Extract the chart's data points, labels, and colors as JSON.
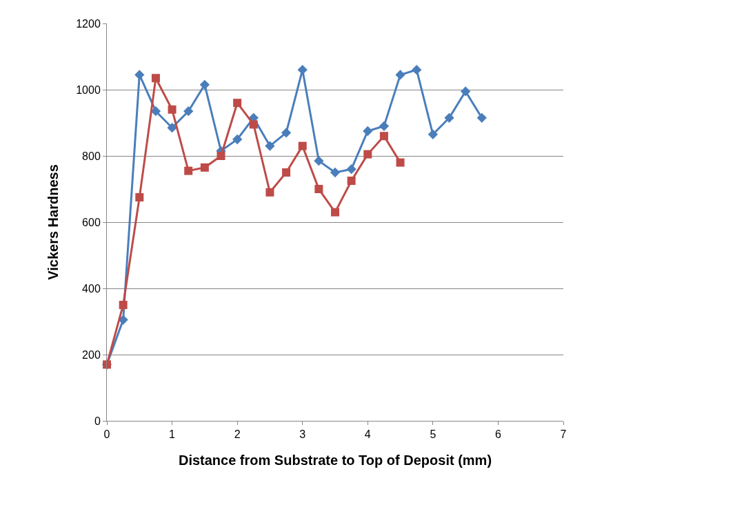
{
  "chart_data": {
    "type": "line",
    "xlabel": "Distance from Substrate to Top of Deposit (mm)",
    "ylabel": "Vickers Hardness",
    "xlim": [
      0,
      7
    ],
    "xticks": [
      0,
      1,
      2,
      3,
      4,
      5,
      6,
      7
    ],
    "ylim": [
      0,
      1200
    ],
    "yticks": [
      0,
      200,
      400,
      600,
      800,
      1000,
      1200
    ],
    "grid": "y",
    "series": [
      {
        "color": "#4a7ebb",
        "marker": "diamond",
        "x": [
          0,
          0.25,
          0.5,
          0.75,
          1,
          1.25,
          1.5,
          1.75,
          2,
          2.25,
          2.5,
          2.75,
          3,
          3.25,
          3.5,
          3.75,
          4,
          4.25,
          4.5,
          4.75,
          5,
          5.25,
          5.5,
          5.75
        ],
        "values": [
          170,
          305,
          1045,
          935,
          885,
          935,
          1015,
          815,
          850,
          915,
          830,
          870,
          1060,
          785,
          750,
          760,
          875,
          890,
          1045,
          1060,
          865,
          915,
          995,
          915
        ]
      },
      {
        "color": "#be4b48",
        "marker": "square",
        "x": [
          0,
          0.25,
          0.5,
          0.75,
          1,
          1.25,
          1.5,
          1.75,
          2,
          2.25,
          2.5,
          2.75,
          3,
          3.25,
          3.5,
          3.75,
          4,
          4.25,
          4.5
        ],
        "values": [
          170,
          350,
          675,
          1035,
          940,
          755,
          765,
          800,
          960,
          895,
          690,
          750,
          830,
          700,
          630,
          725,
          805,
          860,
          780
        ]
      }
    ]
  }
}
